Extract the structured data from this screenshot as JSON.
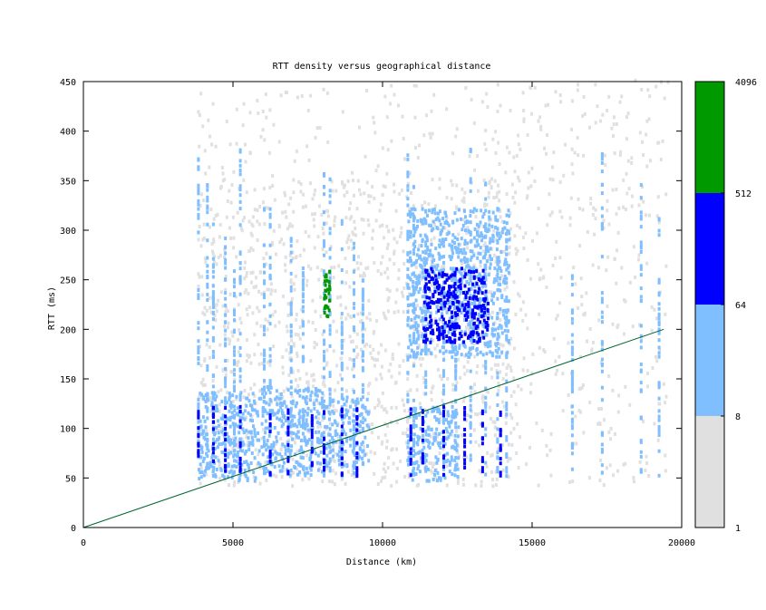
{
  "chart_data": {
    "type": "heatmap",
    "title": "RTT density versus geographical distance",
    "xlabel": "Distance (km)",
    "ylabel": "RTT (ms)",
    "xlim": [
      0,
      20000
    ],
    "ylim": [
      0,
      450
    ],
    "x_ticks": [
      "0",
      "5000",
      "10000",
      "15000",
      "20000"
    ],
    "x_tick_values": [
      0,
      5000,
      10000,
      15000,
      20000
    ],
    "y_ticks": [
      "0",
      "50",
      "100",
      "150",
      "200",
      "250",
      "300",
      "350",
      "400",
      "450"
    ],
    "y_tick_values": [
      0,
      50,
      100,
      150,
      200,
      250,
      300,
      350,
      400,
      450
    ],
    "colorbar": {
      "scale": "log2",
      "labels": [
        "1",
        "8",
        "64",
        "512",
        "4096"
      ],
      "bands": [
        {
          "from": 1,
          "to": 8,
          "color": "#e0e0e0"
        },
        {
          "from": 8,
          "to": 64,
          "color": "#80bfff"
        },
        {
          "from": 64,
          "to": 512,
          "color": "#0000ff"
        },
        {
          "from": 512,
          "to": 4096,
          "color": "#009900"
        }
      ]
    },
    "reference_line": {
      "color": "#006633",
      "x": [
        0,
        19400
      ],
      "y": [
        0,
        200
      ]
    },
    "density_regions": [
      {
        "x": [
          3800,
          5800
        ],
        "y": [
          45,
          135
        ],
        "level": "light-blue"
      },
      {
        "x": [
          5800,
          8200
        ],
        "y": [
          50,
          140
        ],
        "level": "light-blue"
      },
      {
        "x": [
          8200,
          9500
        ],
        "y": [
          60,
          130
        ],
        "level": "light-blue"
      },
      {
        "x": [
          10800,
          14200
        ],
        "y": [
          170,
          320
        ],
        "level": "light-blue"
      },
      {
        "x": [
          10800,
          12500
        ],
        "y": [
          45,
          120
        ],
        "level": "light-blue"
      },
      {
        "x": [
          11300,
          13500
        ],
        "y": [
          185,
          260
        ],
        "level": "blue"
      },
      {
        "x": [
          8000,
          8200
        ],
        "y": [
          210,
          260
        ],
        "level": "green"
      }
    ]
  }
}
